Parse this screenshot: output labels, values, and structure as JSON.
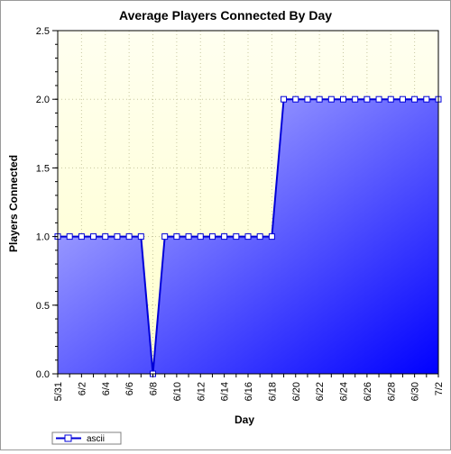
{
  "chart_data": {
    "type": "area",
    "title": "Average Players Connected By Day",
    "xlabel": "Day",
    "ylabel": "Players Connected",
    "ylim": [
      0,
      2.5
    ],
    "yticks": [
      "0.0",
      "0.5",
      "1.0",
      "1.5",
      "2.0",
      "2.5"
    ],
    "x": [
      "5/31",
      "6/1",
      "6/2",
      "6/3",
      "6/4",
      "6/5",
      "6/6",
      "6/7",
      "6/8",
      "6/9",
      "6/10",
      "6/11",
      "6/12",
      "6/13",
      "6/14",
      "6/15",
      "6/16",
      "6/17",
      "6/18",
      "6/19",
      "6/20",
      "6/21",
      "6/22",
      "6/23",
      "6/24",
      "6/25",
      "6/26",
      "6/27",
      "6/28",
      "6/29",
      "6/30",
      "7/1",
      "7/2"
    ],
    "xtick_labels": [
      "5/31",
      "6/2",
      "6/4",
      "6/6",
      "6/8",
      "6/10",
      "6/12",
      "6/14",
      "6/16",
      "6/18",
      "6/20",
      "6/22",
      "6/24",
      "6/26",
      "6/28",
      "6/30",
      "7/2"
    ],
    "series": [
      {
        "name": "ascii",
        "values": [
          1,
          1,
          1,
          1,
          1,
          1,
          1,
          1,
          0,
          1,
          1,
          1,
          1,
          1,
          1,
          1,
          1,
          1,
          1,
          2,
          2,
          2,
          2,
          2,
          2,
          2,
          2,
          2,
          2,
          2,
          2,
          2,
          2
        ]
      }
    ],
    "grid": true,
    "legend": "bottom-left",
    "colors": {
      "plot_bg_top": "#fffff0",
      "plot_bg_bottom": "#ffffcc",
      "line": "#0000d8",
      "fill_light": "#c8c8ff",
      "fill_dark": "#0000ff",
      "grid": "#c8c8a0"
    }
  }
}
